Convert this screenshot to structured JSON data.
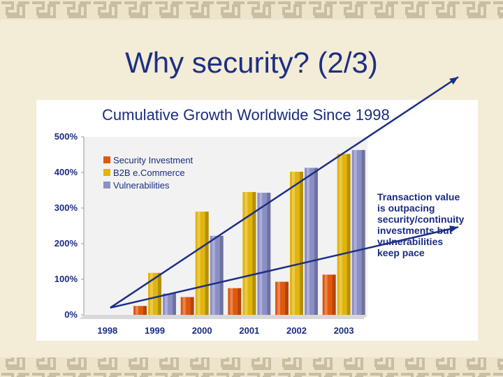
{
  "slide": {
    "title": "Why security? (2/3)",
    "colors": {
      "background": "#f3ecd6",
      "title": "#1c2f86",
      "border_pattern": "#c9c0a6"
    }
  },
  "chart_data": {
    "type": "bar",
    "title": "Cumulative Growth Worldwide Since 1998",
    "categories": [
      "1998",
      "1999",
      "2000",
      "2001",
      "2002",
      "2003"
    ],
    "ylim": [
      0,
      500
    ],
    "yticks": [
      0,
      100,
      200,
      300,
      400,
      500
    ],
    "ytick_labels": [
      "0%",
      "100%",
      "200%",
      "300%",
      "400%",
      "500%"
    ],
    "grid": false,
    "legend_position": "top-left",
    "series": [
      {
        "name": "Security Investment",
        "color": "#e0580e",
        "values": [
          0,
          25,
          50,
          75,
          93,
          113
        ]
      },
      {
        "name": "B2B e.Commerce",
        "color": "#e2b50c",
        "values": [
          0,
          118,
          290,
          345,
          402,
          452
        ]
      },
      {
        "name": "Vulnerabilities",
        "color": "#8c8fc6",
        "values": [
          0,
          60,
          222,
          343,
          413,
          463
        ]
      }
    ],
    "trend_lines": [
      {
        "from": [
          "1998",
          20
        ],
        "to": [
          "2003",
          455
        ],
        "color": "#1c2f86"
      },
      {
        "from": [
          "1998",
          20
        ],
        "to": [
          "2003",
          172
        ],
        "color": "#1c2f86"
      }
    ],
    "annotation": {
      "lines": [
        "Transaction value",
        "is outpacing",
        "security/continuity",
        "investments but",
        "vulnerabilities",
        "keep pace"
      ]
    }
  }
}
